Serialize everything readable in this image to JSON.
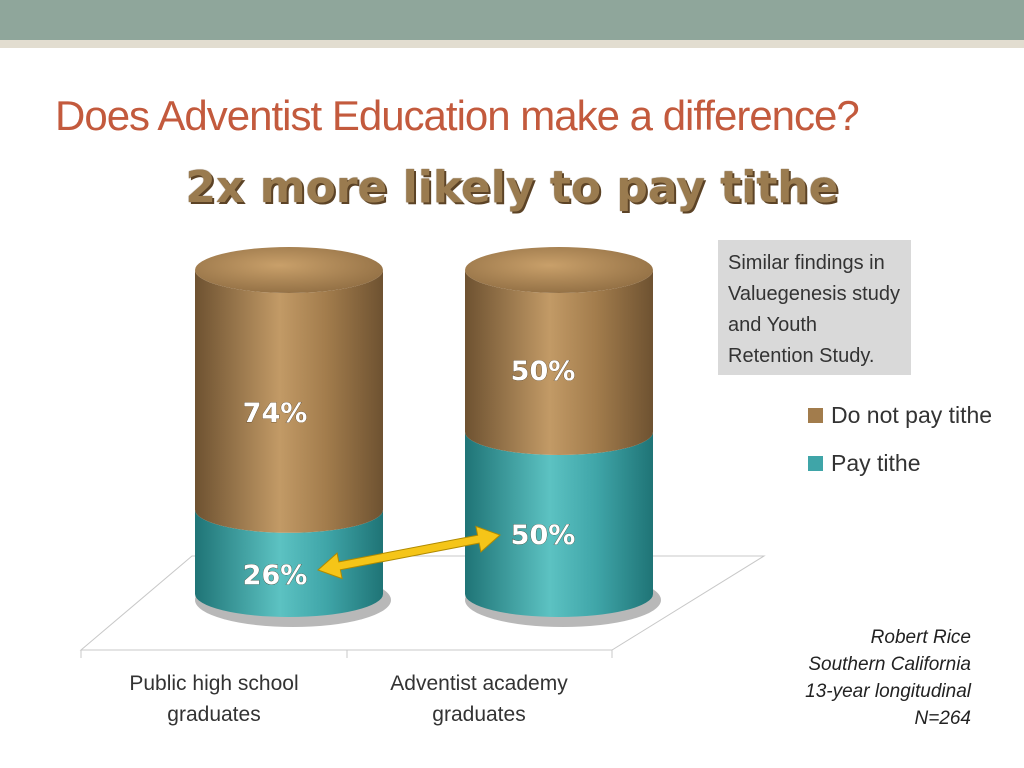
{
  "slide": {
    "title": "Does Adventist Education make a difference?",
    "subtitle": "2x more likely to pay tithe",
    "note": "Similar findings in Valuegenesis study and Youth Retention Study.",
    "attribution": [
      "Robert Rice",
      "Southern California",
      "13-year longitudinal",
      "N=264"
    ]
  },
  "colors": {
    "do_not_pay": "#a27c4c",
    "pay": "#3fa5a8",
    "arrow": "#f5c518",
    "title": "#c35a3d",
    "subtitle": "#9a7b4f"
  },
  "chart_data": {
    "type": "bar",
    "stacked": true,
    "categories": [
      "Public high school graduates",
      "Adventist academy graduates"
    ],
    "series": [
      {
        "name": "Pay tithe",
        "values": [
          26,
          50
        ],
        "labels": [
          "26%",
          "50%"
        ]
      },
      {
        "name": "Do not pay tithe",
        "values": [
          74,
          50
        ],
        "labels": [
          "74%",
          "50%"
        ]
      }
    ],
    "ylim": [
      0,
      100
    ],
    "legend": "right",
    "annotation": "double-headed arrow between Pay tithe segments"
  }
}
